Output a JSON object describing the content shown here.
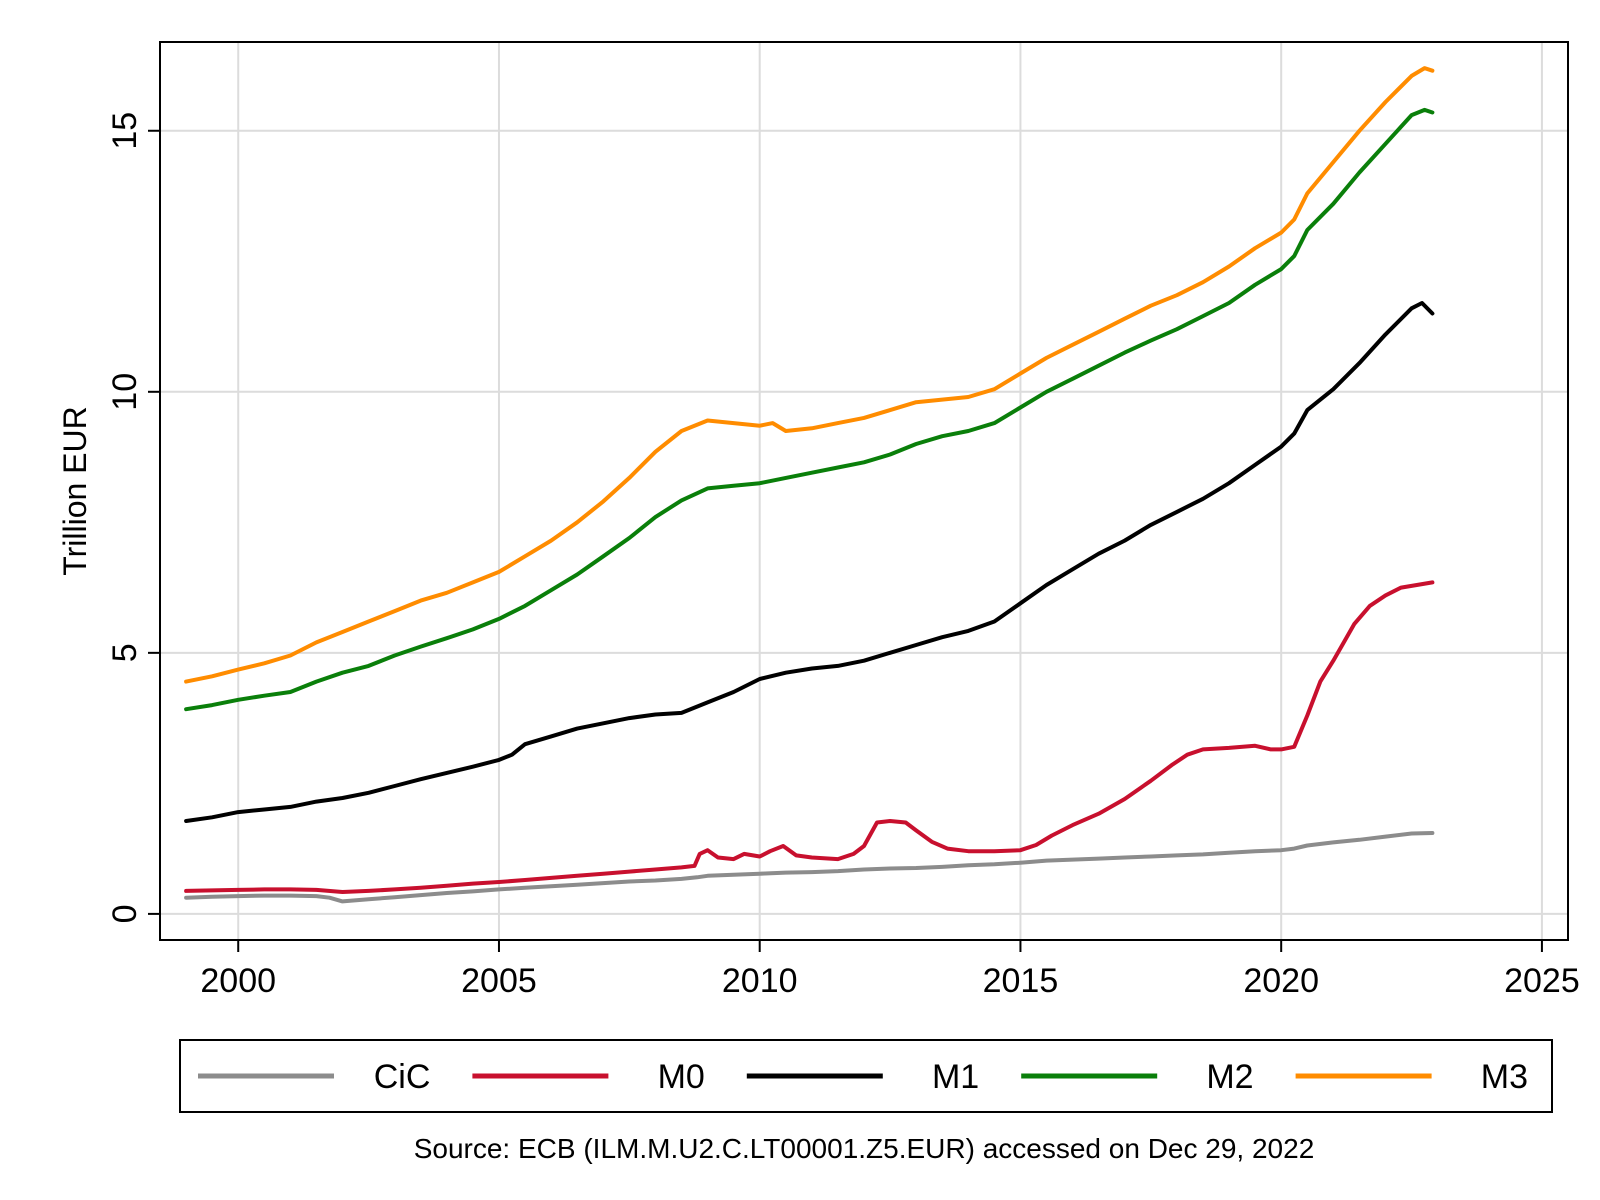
{
  "chart_data": {
    "type": "line",
    "title": "",
    "xlabel": "",
    "ylabel": "Trillion EUR",
    "xlim": [
      1998.5,
      2025.5
    ],
    "ylim": [
      -0.5,
      16.7
    ],
    "xticks": [
      2000,
      2005,
      2010,
      2015,
      2020,
      2025
    ],
    "yticks": [
      0,
      5,
      10,
      15
    ],
    "grid": true,
    "legend_position": "bottom",
    "note": "Source: ECB (ILM.M.U2.C.LT00001.Z5.EUR) accessed on Dec 29, 2022",
    "series": [
      {
        "name": "CiC",
        "color": "#8c8c8c",
        "points": [
          [
            1999.0,
            0.31
          ],
          [
            1999.5,
            0.33
          ],
          [
            2000.0,
            0.34
          ],
          [
            2000.5,
            0.35
          ],
          [
            2001.0,
            0.35
          ],
          [
            2001.5,
            0.34
          ],
          [
            2001.75,
            0.31
          ],
          [
            2002.0,
            0.24
          ],
          [
            2002.5,
            0.28
          ],
          [
            2003.0,
            0.32
          ],
          [
            2003.5,
            0.36
          ],
          [
            2004.0,
            0.4
          ],
          [
            2004.5,
            0.43
          ],
          [
            2005.0,
            0.47
          ],
          [
            2005.5,
            0.5
          ],
          [
            2006.0,
            0.53
          ],
          [
            2006.5,
            0.56
          ],
          [
            2007.0,
            0.59
          ],
          [
            2007.5,
            0.62
          ],
          [
            2008.0,
            0.64
          ],
          [
            2008.5,
            0.67
          ],
          [
            2008.8,
            0.7
          ],
          [
            2009.0,
            0.73
          ],
          [
            2009.5,
            0.75
          ],
          [
            2010.0,
            0.77
          ],
          [
            2010.5,
            0.79
          ],
          [
            2011.0,
            0.8
          ],
          [
            2011.5,
            0.82
          ],
          [
            2012.0,
            0.85
          ],
          [
            2012.5,
            0.87
          ],
          [
            2013.0,
            0.88
          ],
          [
            2013.5,
            0.9
          ],
          [
            2014.0,
            0.93
          ],
          [
            2014.5,
            0.95
          ],
          [
            2015.0,
            0.98
          ],
          [
            2015.5,
            1.02
          ],
          [
            2016.0,
            1.04
          ],
          [
            2016.5,
            1.06
          ],
          [
            2017.0,
            1.08
          ],
          [
            2017.5,
            1.1
          ],
          [
            2018.0,
            1.12
          ],
          [
            2018.5,
            1.14
          ],
          [
            2019.0,
            1.17
          ],
          [
            2019.5,
            1.2
          ],
          [
            2020.0,
            1.22
          ],
          [
            2020.25,
            1.25
          ],
          [
            2020.5,
            1.31
          ],
          [
            2021.0,
            1.37
          ],
          [
            2021.5,
            1.42
          ],
          [
            2022.0,
            1.48
          ],
          [
            2022.5,
            1.54
          ],
          [
            2022.9,
            1.55
          ]
        ]
      },
      {
        "name": "M0",
        "color": "#c8102e",
        "points": [
          [
            1999.0,
            0.44
          ],
          [
            1999.5,
            0.45
          ],
          [
            2000.0,
            0.46
          ],
          [
            2000.5,
            0.47
          ],
          [
            2001.0,
            0.47
          ],
          [
            2001.5,
            0.46
          ],
          [
            2002.0,
            0.42
          ],
          [
            2002.5,
            0.44
          ],
          [
            2003.0,
            0.47
          ],
          [
            2003.5,
            0.5
          ],
          [
            2004.0,
            0.54
          ],
          [
            2004.5,
            0.58
          ],
          [
            2005.0,
            0.61
          ],
          [
            2005.5,
            0.65
          ],
          [
            2006.0,
            0.69
          ],
          [
            2006.5,
            0.73
          ],
          [
            2007.0,
            0.77
          ],
          [
            2007.5,
            0.81
          ],
          [
            2008.0,
            0.85
          ],
          [
            2008.5,
            0.89
          ],
          [
            2008.75,
            0.92
          ],
          [
            2008.85,
            1.15
          ],
          [
            2009.0,
            1.22
          ],
          [
            2009.2,
            1.08
          ],
          [
            2009.5,
            1.05
          ],
          [
            2009.7,
            1.15
          ],
          [
            2010.0,
            1.1
          ],
          [
            2010.2,
            1.2
          ],
          [
            2010.45,
            1.3
          ],
          [
            2010.7,
            1.12
          ],
          [
            2011.0,
            1.08
          ],
          [
            2011.5,
            1.05
          ],
          [
            2011.8,
            1.15
          ],
          [
            2012.0,
            1.3
          ],
          [
            2012.25,
            1.75
          ],
          [
            2012.5,
            1.78
          ],
          [
            2012.8,
            1.75
          ],
          [
            2013.0,
            1.6
          ],
          [
            2013.3,
            1.38
          ],
          [
            2013.6,
            1.25
          ],
          [
            2014.0,
            1.2
          ],
          [
            2014.5,
            1.2
          ],
          [
            2015.0,
            1.22
          ],
          [
            2015.3,
            1.32
          ],
          [
            2015.6,
            1.5
          ],
          [
            2016.0,
            1.7
          ],
          [
            2016.5,
            1.92
          ],
          [
            2017.0,
            2.2
          ],
          [
            2017.5,
            2.55
          ],
          [
            2017.9,
            2.85
          ],
          [
            2018.2,
            3.05
          ],
          [
            2018.5,
            3.15
          ],
          [
            2019.0,
            3.18
          ],
          [
            2019.5,
            3.22
          ],
          [
            2019.8,
            3.15
          ],
          [
            2020.0,
            3.15
          ],
          [
            2020.25,
            3.2
          ],
          [
            2020.5,
            3.8
          ],
          [
            2020.75,
            4.45
          ],
          [
            2021.0,
            4.85
          ],
          [
            2021.2,
            5.2
          ],
          [
            2021.4,
            5.55
          ],
          [
            2021.7,
            5.9
          ],
          [
            2022.0,
            6.1
          ],
          [
            2022.3,
            6.25
          ],
          [
            2022.6,
            6.3
          ],
          [
            2022.9,
            6.35
          ]
        ]
      },
      {
        "name": "M1",
        "color": "#000000",
        "points": [
          [
            1999.0,
            1.78
          ],
          [
            1999.5,
            1.85
          ],
          [
            2000.0,
            1.95
          ],
          [
            2000.5,
            2.0
          ],
          [
            2001.0,
            2.05
          ],
          [
            2001.5,
            2.15
          ],
          [
            2002.0,
            2.22
          ],
          [
            2002.5,
            2.32
          ],
          [
            2003.0,
            2.45
          ],
          [
            2003.5,
            2.58
          ],
          [
            2004.0,
            2.7
          ],
          [
            2004.5,
            2.82
          ],
          [
            2005.0,
            2.95
          ],
          [
            2005.25,
            3.05
          ],
          [
            2005.5,
            3.25
          ],
          [
            2006.0,
            3.4
          ],
          [
            2006.5,
            3.55
          ],
          [
            2007.0,
            3.65
          ],
          [
            2007.5,
            3.75
          ],
          [
            2008.0,
            3.82
          ],
          [
            2008.5,
            3.85
          ],
          [
            2009.0,
            4.05
          ],
          [
            2009.5,
            4.25
          ],
          [
            2010.0,
            4.5
          ],
          [
            2010.5,
            4.62
          ],
          [
            2011.0,
            4.7
          ],
          [
            2011.5,
            4.75
          ],
          [
            2012.0,
            4.85
          ],
          [
            2012.5,
            5.0
          ],
          [
            2013.0,
            5.15
          ],
          [
            2013.5,
            5.3
          ],
          [
            2014.0,
            5.42
          ],
          [
            2014.5,
            5.6
          ],
          [
            2015.0,
            5.95
          ],
          [
            2015.5,
            6.3
          ],
          [
            2016.0,
            6.6
          ],
          [
            2016.5,
            6.9
          ],
          [
            2017.0,
            7.15
          ],
          [
            2017.5,
            7.45
          ],
          [
            2018.0,
            7.7
          ],
          [
            2018.5,
            7.95
          ],
          [
            2019.0,
            8.25
          ],
          [
            2019.5,
            8.6
          ],
          [
            2020.0,
            8.95
          ],
          [
            2020.25,
            9.2
          ],
          [
            2020.5,
            9.65
          ],
          [
            2021.0,
            10.05
          ],
          [
            2021.5,
            10.55
          ],
          [
            2022.0,
            11.1
          ],
          [
            2022.5,
            11.6
          ],
          [
            2022.7,
            11.7
          ],
          [
            2022.9,
            11.5
          ]
        ]
      },
      {
        "name": "M2",
        "color": "#0a7f0a",
        "points": [
          [
            1999.0,
            3.92
          ],
          [
            1999.5,
            4.0
          ],
          [
            2000.0,
            4.1
          ],
          [
            2000.5,
            4.18
          ],
          [
            2001.0,
            4.25
          ],
          [
            2001.5,
            4.45
          ],
          [
            2002.0,
            4.62
          ],
          [
            2002.5,
            4.75
          ],
          [
            2003.0,
            4.95
          ],
          [
            2003.5,
            5.12
          ],
          [
            2004.0,
            5.28
          ],
          [
            2004.5,
            5.45
          ],
          [
            2005.0,
            5.65
          ],
          [
            2005.5,
            5.9
          ],
          [
            2006.0,
            6.2
          ],
          [
            2006.5,
            6.5
          ],
          [
            2007.0,
            6.85
          ],
          [
            2007.5,
            7.2
          ],
          [
            2008.0,
            7.6
          ],
          [
            2008.5,
            7.92
          ],
          [
            2009.0,
            8.15
          ],
          [
            2009.5,
            8.2
          ],
          [
            2010.0,
            8.25
          ],
          [
            2010.5,
            8.35
          ],
          [
            2011.0,
            8.45
          ],
          [
            2011.5,
            8.55
          ],
          [
            2012.0,
            8.65
          ],
          [
            2012.5,
            8.8
          ],
          [
            2013.0,
            9.0
          ],
          [
            2013.5,
            9.15
          ],
          [
            2014.0,
            9.25
          ],
          [
            2014.5,
            9.4
          ],
          [
            2015.0,
            9.7
          ],
          [
            2015.5,
            10.0
          ],
          [
            2016.0,
            10.25
          ],
          [
            2016.5,
            10.5
          ],
          [
            2017.0,
            10.75
          ],
          [
            2017.5,
            10.98
          ],
          [
            2018.0,
            11.2
          ],
          [
            2018.5,
            11.45
          ],
          [
            2019.0,
            11.7
          ],
          [
            2019.5,
            12.05
          ],
          [
            2020.0,
            12.35
          ],
          [
            2020.25,
            12.6
          ],
          [
            2020.5,
            13.1
          ],
          [
            2021.0,
            13.6
          ],
          [
            2021.5,
            14.2
          ],
          [
            2022.0,
            14.75
          ],
          [
            2022.5,
            15.3
          ],
          [
            2022.75,
            15.4
          ],
          [
            2022.9,
            15.35
          ]
        ]
      },
      {
        "name": "M3",
        "color": "#ff8c00",
        "points": [
          [
            1999.0,
            4.45
          ],
          [
            1999.5,
            4.55
          ],
          [
            2000.0,
            4.68
          ],
          [
            2000.5,
            4.8
          ],
          [
            2001.0,
            4.95
          ],
          [
            2001.5,
            5.2
          ],
          [
            2002.0,
            5.4
          ],
          [
            2002.5,
            5.6
          ],
          [
            2003.0,
            5.8
          ],
          [
            2003.5,
            6.0
          ],
          [
            2004.0,
            6.15
          ],
          [
            2004.5,
            6.35
          ],
          [
            2005.0,
            6.55
          ],
          [
            2005.5,
            6.85
          ],
          [
            2006.0,
            7.15
          ],
          [
            2006.5,
            7.5
          ],
          [
            2007.0,
            7.9
          ],
          [
            2007.5,
            8.35
          ],
          [
            2008.0,
            8.85
          ],
          [
            2008.5,
            9.25
          ],
          [
            2009.0,
            9.45
          ],
          [
            2009.5,
            9.4
          ],
          [
            2010.0,
            9.35
          ],
          [
            2010.25,
            9.4
          ],
          [
            2010.5,
            9.25
          ],
          [
            2011.0,
            9.3
          ],
          [
            2011.5,
            9.4
          ],
          [
            2012.0,
            9.5
          ],
          [
            2012.5,
            9.65
          ],
          [
            2013.0,
            9.8
          ],
          [
            2013.5,
            9.85
          ],
          [
            2014.0,
            9.9
          ],
          [
            2014.5,
            10.05
          ],
          [
            2015.0,
            10.35
          ],
          [
            2015.5,
            10.65
          ],
          [
            2016.0,
            10.9
          ],
          [
            2016.5,
            11.15
          ],
          [
            2017.0,
            11.4
          ],
          [
            2017.5,
            11.65
          ],
          [
            2018.0,
            11.85
          ],
          [
            2018.5,
            12.1
          ],
          [
            2019.0,
            12.4
          ],
          [
            2019.5,
            12.75
          ],
          [
            2020.0,
            13.05
          ],
          [
            2020.25,
            13.3
          ],
          [
            2020.5,
            13.8
          ],
          [
            2021.0,
            14.4
          ],
          [
            2021.5,
            15.0
          ],
          [
            2022.0,
            15.55
          ],
          [
            2022.5,
            16.05
          ],
          [
            2022.75,
            16.2
          ],
          [
            2022.9,
            16.15
          ]
        ]
      }
    ]
  }
}
